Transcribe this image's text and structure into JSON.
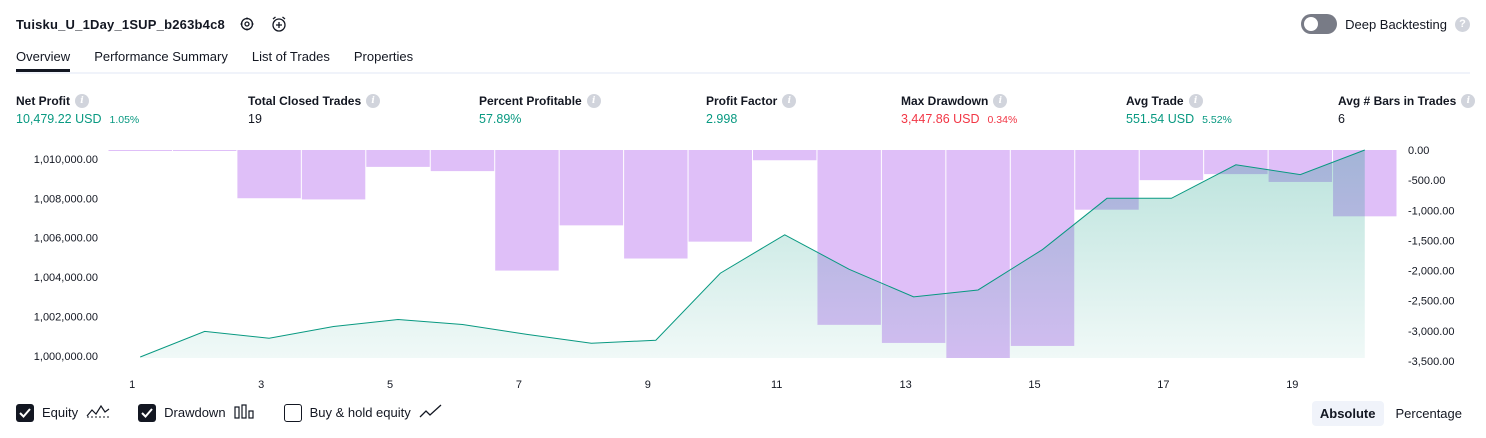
{
  "header": {
    "strategy_name": "Tuisku_U_1Day_1SUP_b263b4c8",
    "settings_icon": "settings-gear-icon",
    "add_alert_icon": "add-alert-icon"
  },
  "deep_backtesting": {
    "label": "Deep Backtesting",
    "enabled": false,
    "help": "?"
  },
  "tabs": [
    {
      "label": "Overview",
      "active": true
    },
    {
      "label": "Performance Summary",
      "active": false
    },
    {
      "label": "List of Trades",
      "active": false
    },
    {
      "label": "Properties",
      "active": false
    }
  ],
  "metrics": [
    {
      "title": "Net Profit",
      "value": "10,479.22 USD",
      "pct": "1.05%",
      "color": "#089981"
    },
    {
      "title": "Total Closed Trades",
      "value": "19",
      "pct": "",
      "color": "#131722"
    },
    {
      "title": "Percent Profitable",
      "value": "57.89%",
      "pct": "",
      "color": "#089981"
    },
    {
      "title": "Profit Factor",
      "value": "2.998",
      "pct": "",
      "color": "#089981"
    },
    {
      "title": "Max Drawdown",
      "value": "3,447.86 USD",
      "pct": "0.34%",
      "color": "#f23645"
    },
    {
      "title": "Avg Trade",
      "value": "551.54 USD",
      "pct": "5.52%",
      "color": "#089981"
    },
    {
      "title": "Avg # Bars in Trades",
      "value": "6",
      "pct": "",
      "color": "#131722"
    }
  ],
  "chart_data": {
    "type": "line",
    "x": [
      1,
      2,
      3,
      4,
      5,
      6,
      7,
      8,
      9,
      10,
      11,
      12,
      13,
      14,
      15,
      16,
      17,
      18,
      19,
      20
    ],
    "x_tick_labels": [
      "1",
      "3",
      "5",
      "7",
      "9",
      "11",
      "13",
      "15",
      "17",
      "19"
    ],
    "series": [
      {
        "name": "Equity",
        "axis": "left",
        "render": "line-area",
        "color": "#089981",
        "values": [
          999950,
          1001250,
          1000900,
          1001500,
          1001850,
          1001600,
          1001100,
          1000650,
          1000800,
          1004200,
          1006150,
          1004400,
          1003000,
          1003350,
          1005400,
          1008000,
          1008000,
          1009700,
          1009200,
          1010450
        ]
      },
      {
        "name": "Drawdown",
        "axis": "right",
        "render": "bars",
        "color": "#ce93d8",
        "values": [
          -5,
          -5,
          -800,
          -820,
          -280,
          -350,
          -2000,
          -1250,
          -1800,
          -1520,
          -170,
          -2900,
          -3200,
          -3450,
          -3250,
          -990,
          -500,
          -400,
          -530,
          -1100
        ]
      }
    ],
    "left_axis": {
      "ylim": [
        999900,
        1010450
      ],
      "ticks": [
        "1,010,000.00",
        "1,008,000.00",
        "1,006,000.00",
        "1,004,000.00",
        "1,002,000.00",
        "1,000,000.00"
      ],
      "tick_values": [
        1010000,
        1008000,
        1006000,
        1004000,
        1002000,
        1000000
      ]
    },
    "right_axis": {
      "ylim": [
        -3450,
        0
      ],
      "ticks": [
        "0.00",
        "-500.00",
        "-1,000.00",
        "-1,500.00",
        "-2,000.00",
        "-2,500.00",
        "-3,000.00",
        "-3,500.00"
      ],
      "tick_values": [
        0,
        -500,
        -1000,
        -1500,
        -2000,
        -2500,
        -3000,
        -3500
      ]
    },
    "grid": false,
    "legend": "bottom-left"
  },
  "legend": [
    {
      "label": "Equity",
      "checked": true,
      "icon": "equity-line-icon"
    },
    {
      "label": "Drawdown",
      "checked": true,
      "icon": "drawdown-bars-icon"
    },
    {
      "label": "Buy & hold equity",
      "checked": false,
      "icon": "buy-hold-line-icon"
    }
  ],
  "mode": {
    "absolute_label": "Absolute",
    "percentage_label": "Percentage",
    "active": "Absolute"
  }
}
